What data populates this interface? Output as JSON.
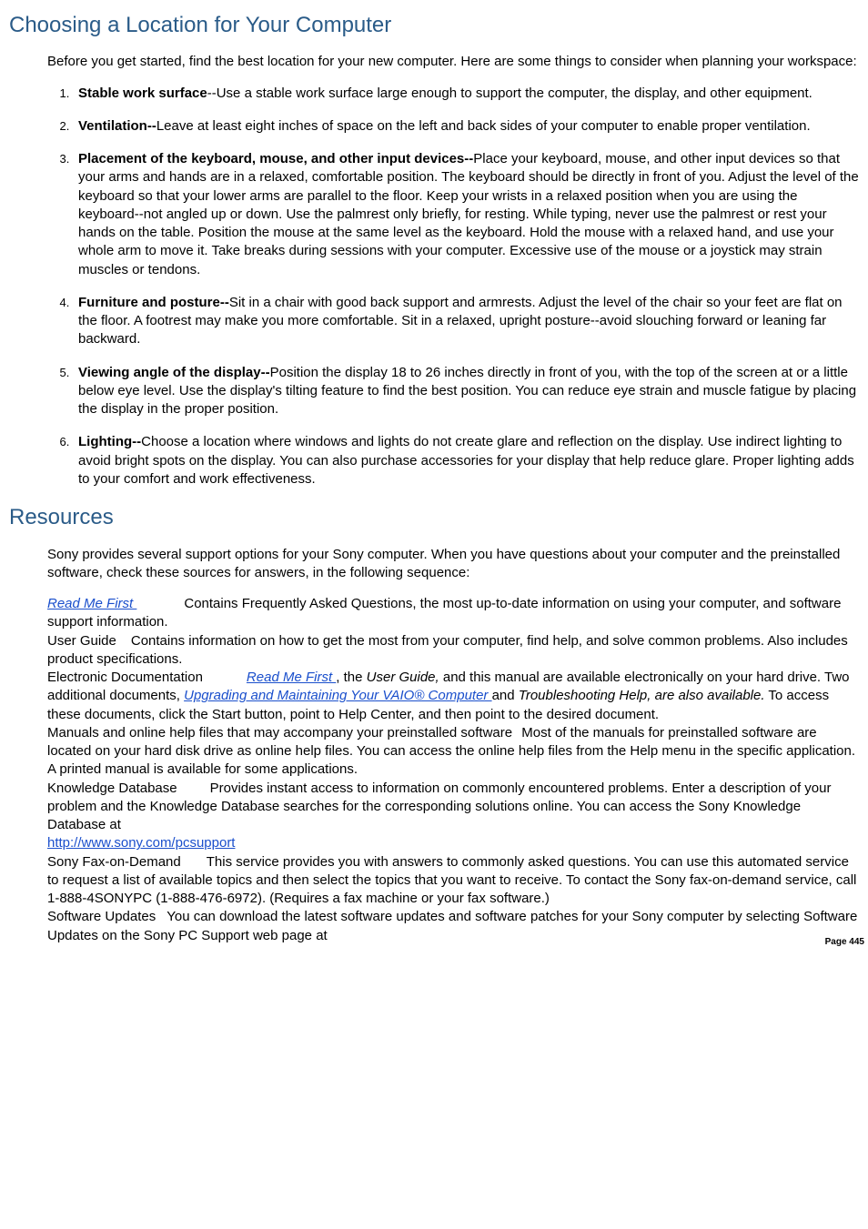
{
  "section1": {
    "heading": "Choosing a Location for Your Computer",
    "intro": "Before you get started, find the best location for your new computer. Here are some things to consider when planning your workspace:",
    "items": [
      {
        "bold": "Stable work surface",
        "rest": "--Use a stable work surface large enough to support the computer, the display, and other equipment."
      },
      {
        "bold": "Ventilation--",
        "rest": "Leave at least eight inches of space on the left and back sides of your computer to enable proper ventilation."
      },
      {
        "bold": "Placement of the keyboard, mouse, and other input devices--",
        "rest": "Place your keyboard, mouse, and other input devices so that your arms and hands are in a relaxed, comfortable position. The keyboard should be directly in front of you. Adjust the level of the keyboard so that your lower arms are parallel to the floor. Keep your wrists in a relaxed position when you are using the keyboard--not angled up or down. Use the palmrest only briefly, for resting. While typing, never use the palmrest or rest your hands on the table. Position the mouse at the same level as the keyboard. Hold the mouse with a relaxed hand, and use your whole arm to move it. Take breaks during sessions with your computer. Excessive use of the mouse or a joystick may strain muscles or tendons."
      },
      {
        "bold": "Furniture and posture--",
        "rest": "Sit in a chair with good back support and armrests. Adjust the level of the chair so your feet are flat on the floor. A footrest may make you more comfortable. Sit in a relaxed, upright posture--avoid slouching forward or leaning far backward."
      },
      {
        "bold": "Viewing angle of the display--",
        "rest": "Position the display 18 to 26 inches directly in front of you, with the top of the screen at or a little below eye level. Use the display's tilting feature to find the best position. You can reduce eye strain and muscle fatigue by placing the display in the proper position."
      },
      {
        "bold": "Lighting--",
        "rest": "Choose a location where windows and lights do not create glare and reflection on the display. Use indirect lighting to avoid bright spots on the display. You can also purchase accessories for your display that help reduce glare. Proper lighting adds to your comfort and work effectiveness."
      }
    ]
  },
  "section2": {
    "heading": "Resources",
    "intro": "Sony provides several support options for your Sony computer. When you have questions about your computer and the preinstalled software, check these sources for answers, in the following sequence:",
    "r1_link": "Read Me First ",
    "r1_rest": "Contains Frequently Asked Questions, the most up-to-date information on using your computer, and software support information.",
    "r2_label": "User Guide",
    "r2_rest": "Contains information on how to get the most from your computer, find help, and solve common problems. Also includes product specifications.",
    "r3_label": "Electronic Documentation",
    "r3_link1": "Read Me First ",
    "r3_mid1": ", the ",
    "r3_ital": "User Guide,",
    "r3_mid2": " and this manual are available electronically on your hard drive. Two additional documents, ",
    "r3_link2": "Upgrading and Maintaining Your VAIO® Computer ",
    "r3_mid3": "and ",
    "r3_ital2": "Troubleshooting Help, are also available.",
    "r3_rest": " To access these documents, click the Start button, point to Help Center, and then point to the desired document.",
    "r4_label": "Manuals and online help files that may accompany your preinstalled software",
    "r4_rest": "Most of the manuals for preinstalled software are located on your hard disk drive as online help files. You can access the online help files from the Help menu in the specific application. A printed manual is available for some applications.",
    "r5_label": "Knowledge Database",
    "r5_rest": "Provides instant access to information on commonly encountered problems. Enter a description of your problem and the Knowledge Database searches for the corresponding solutions online. You can access the Sony Knowledge Database at ",
    "r5_link": "http://www.sony.com/pcsupport",
    "r6_label": "Sony Fax-on-Demand",
    "r6_rest": "This service provides you with answers to commonly asked questions. You can use this automated service to request a list of available topics and then select the topics that you want to receive. To contact the Sony fax-on-demand service, call 1-888-4SONYPC (1-888-476-6972). (Requires a fax machine or your fax software.)",
    "r7_label": "Software Updates",
    "r7_rest": "You can download the latest software updates and software patches for your Sony computer by selecting Software Updates on the Sony PC Support web page at"
  },
  "page_number": "Page 445"
}
